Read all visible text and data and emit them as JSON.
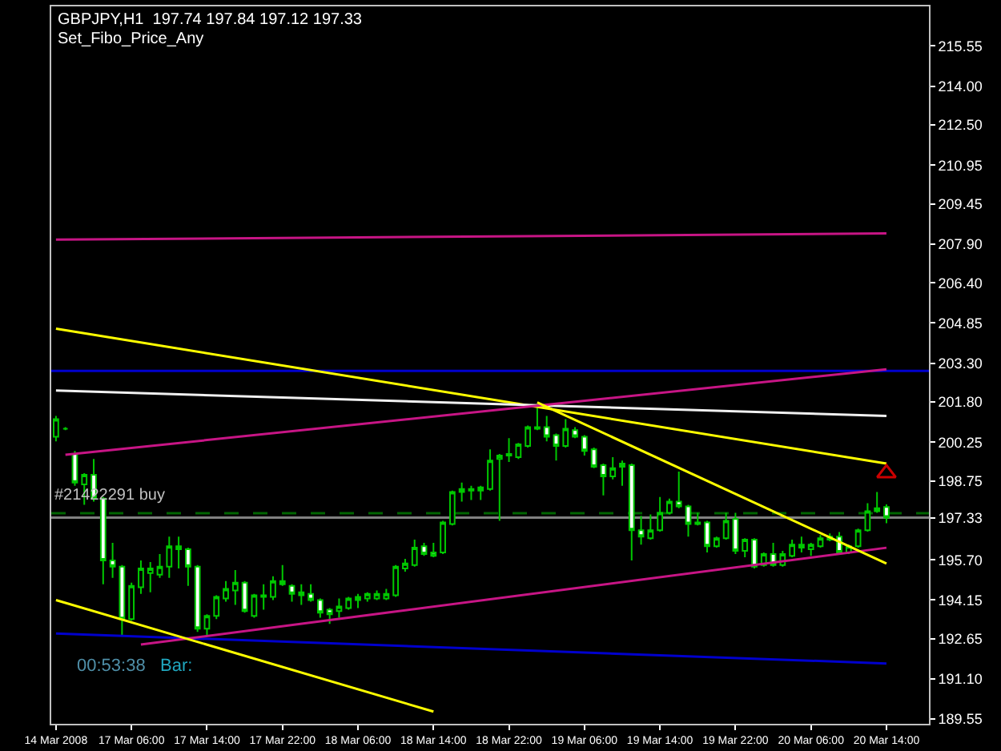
{
  "chart_data": {
    "type": "candlestick",
    "title": "GBPJPY,H1  197.74 197.84 197.12 197.33",
    "subtitle": "Set_Fibo_Price_Any",
    "annotations": [
      "#21422291 buy",
      "00:53:38",
      "Bar:"
    ],
    "categories": [
      "14 Mar 2008",
      null,
      null,
      null,
      null,
      null,
      null,
      null,
      "17 Mar 06:00",
      null,
      null,
      null,
      null,
      null,
      null,
      null,
      "17 Mar 14:00",
      null,
      null,
      null,
      null,
      null,
      null,
      null,
      "17 Mar 22:00",
      null,
      null,
      null,
      null,
      null,
      null,
      null,
      "18 Mar 06:00",
      null,
      null,
      null,
      null,
      null,
      null,
      null,
      "18 Mar 14:00",
      null,
      null,
      null,
      null,
      null,
      null,
      null,
      "18 Mar 22:00",
      null,
      null,
      null,
      null,
      null,
      null,
      null,
      "19 Mar 06:00",
      null,
      null,
      null,
      null,
      null,
      null,
      null,
      "19 Mar 14:00",
      null,
      null,
      null,
      null,
      null,
      null,
      null,
      "19 Mar 22:00",
      null,
      null,
      null,
      null,
      null,
      null,
      null,
      "20 Mar 06:00",
      null,
      null,
      null,
      null,
      null,
      null,
      null,
      "20 Mar 14:00"
    ],
    "color": "#00c800",
    "ohlc": [
      [
        200.46,
        201.26,
        200.28,
        201.14
      ],
      [
        200.77,
        200.83,
        200.71,
        200.77
      ],
      [
        199.79,
        199.91,
        198.56,
        198.69
      ],
      [
        198.62,
        199.05,
        197.83,
        198.99
      ],
      [
        198.99,
        199.6,
        197.95,
        198.07
      ],
      [
        198.07,
        198.13,
        194.76,
        195.68
      ],
      [
        195.68,
        196.36,
        195.01,
        195.44
      ],
      [
        195.44,
        195.5,
        192.74,
        193.41
      ],
      [
        193.41,
        194.82,
        193.35,
        194.7
      ],
      [
        194.64,
        195.68,
        194.39,
        195.37
      ],
      [
        195.19,
        195.62,
        194.45,
        195.37
      ],
      [
        195.13,
        195.93,
        195.01,
        195.44
      ],
      [
        195.44,
        196.6,
        195.01,
        196.23
      ],
      [
        196.23,
        196.6,
        195.37,
        196.11
      ],
      [
        196.11,
        196.17,
        194.7,
        195.44
      ],
      [
        195.44,
        195.5,
        192.92,
        193.04
      ],
      [
        193.04,
        193.6,
        192.74,
        193.54
      ],
      [
        193.54,
        194.33,
        193.41,
        194.27
      ],
      [
        194.21,
        194.88,
        194.09,
        194.58
      ],
      [
        194.52,
        195.31,
        193.96,
        194.82
      ],
      [
        194.82,
        194.88,
        193.66,
        193.72
      ],
      [
        193.54,
        194.39,
        193.47,
        194.33
      ],
      [
        194.33,
        194.76,
        193.78,
        194.27
      ],
      [
        194.27,
        195.07,
        194.15,
        194.88
      ],
      [
        194.88,
        195.5,
        194.7,
        194.76
      ],
      [
        194.7,
        194.76,
        194.09,
        194.39
      ],
      [
        194.45,
        194.76,
        193.96,
        194.33
      ],
      [
        194.39,
        194.76,
        194.09,
        194.15
      ],
      [
        194.15,
        194.21,
        193.47,
        193.66
      ],
      [
        193.78,
        193.84,
        193.23,
        193.6
      ],
      [
        193.72,
        194.21,
        193.47,
        193.9
      ],
      [
        193.84,
        194.27,
        193.78,
        194.21
      ],
      [
        194.15,
        194.39,
        193.84,
        194.27
      ],
      [
        194.21,
        194.45,
        194.09,
        194.39
      ],
      [
        194.21,
        194.52,
        194.15,
        194.39
      ],
      [
        194.21,
        194.58,
        194.15,
        194.39
      ],
      [
        194.33,
        195.5,
        194.27,
        195.44
      ],
      [
        195.37,
        195.74,
        195.25,
        195.56
      ],
      [
        195.5,
        196.48,
        195.44,
        196.17
      ],
      [
        196.23,
        196.36,
        195.86,
        195.93
      ],
      [
        195.99,
        196.36,
        195.8,
        195.86
      ],
      [
        195.99,
        197.21,
        195.93,
        197.15
      ],
      [
        197.09,
        198.38,
        197.03,
        198.32
      ],
      [
        198.32,
        198.69,
        197.95,
        198.44
      ],
      [
        198.44,
        198.56,
        198.01,
        198.38
      ],
      [
        198.38,
        198.56,
        198.01,
        198.5
      ],
      [
        198.44,
        199.97,
        198.38,
        199.54
      ],
      [
        199.6,
        199.79,
        197.21,
        199.73
      ],
      [
        199.73,
        200.4,
        199.48,
        199.79
      ],
      [
        199.67,
        200.22,
        199.6,
        200.16
      ],
      [
        200.1,
        200.89,
        200.04,
        200.83
      ],
      [
        200.83,
        201.57,
        200.71,
        200.77
      ],
      [
        200.83,
        201.26,
        200.28,
        200.46
      ],
      [
        200.52,
        200.58,
        199.54,
        200.1
      ],
      [
        200.1,
        201.14,
        200.04,
        200.77
      ],
      [
        200.71,
        200.83,
        200.4,
        200.46
      ],
      [
        200.46,
        200.52,
        199.73,
        199.91
      ],
      [
        199.97,
        200.04,
        199.24,
        199.3
      ],
      [
        199.36,
        199.42,
        198.19,
        198.93
      ],
      [
        198.93,
        199.67,
        198.81,
        199.24
      ],
      [
        199.42,
        199.54,
        198.56,
        199.3
      ],
      [
        199.36,
        199.42,
        195.68,
        196.85
      ],
      [
        196.85,
        197.4,
        196.29,
        196.6
      ],
      [
        196.54,
        197.46,
        196.48,
        196.85
      ],
      [
        196.85,
        198.13,
        196.79,
        197.52
      ],
      [
        197.52,
        198.07,
        197.46,
        197.95
      ],
      [
        197.95,
        199.11,
        197.7,
        197.77
      ],
      [
        197.77,
        197.83,
        196.6,
        197.09
      ],
      [
        197.15,
        197.52,
        197.03,
        197.09
      ],
      [
        197.15,
        197.21,
        195.99,
        196.23
      ],
      [
        196.23,
        196.6,
        196.17,
        196.54
      ],
      [
        196.54,
        197.52,
        196.48,
        197.21
      ],
      [
        197.28,
        197.52,
        195.93,
        196.05
      ],
      [
        196.05,
        196.54,
        195.8,
        196.48
      ],
      [
        196.48,
        196.54,
        195.37,
        195.44
      ],
      [
        195.5,
        195.99,
        195.44,
        195.93
      ],
      [
        195.93,
        196.36,
        195.44,
        195.5
      ],
      [
        195.5,
        196.05,
        195.44,
        195.93
      ],
      [
        195.86,
        196.48,
        195.8,
        196.29
      ],
      [
        196.29,
        196.6,
        195.99,
        196.17
      ],
      [
        196.11,
        196.36,
        195.86,
        196.29
      ],
      [
        196.23,
        196.66,
        196.17,
        196.54
      ],
      [
        196.48,
        196.72,
        196.42,
        196.6
      ],
      [
        196.6,
        196.78,
        195.93,
        195.99
      ],
      [
        195.99,
        196.29,
        195.93,
        196.23
      ],
      [
        196.23,
        196.91,
        196.17,
        196.85
      ],
      [
        196.85,
        197.89,
        196.79,
        197.58
      ],
      [
        197.58,
        198.32,
        197.52,
        197.7
      ],
      [
        197.74,
        197.84,
        197.12,
        197.33
      ]
    ],
    "series": [
      {
        "type": "line",
        "color": "#c71585",
        "values": [
          208.07,
          null,
          null,
          null,
          null,
          null,
          null,
          null,
          null,
          null,
          null,
          null,
          null,
          null,
          null,
          null,
          null,
          null,
          null,
          null,
          null,
          null,
          null,
          null,
          null,
          null,
          null,
          null,
          null,
          null,
          null,
          null,
          null,
          null,
          null,
          null,
          null,
          null,
          null,
          null,
          null,
          null,
          null,
          null,
          null,
          null,
          null,
          null,
          null,
          null,
          null,
          null,
          null,
          null,
          null,
          null,
          null,
          null,
          null,
          null,
          null,
          null,
          null,
          null,
          null,
          null,
          null,
          null,
          null,
          null,
          null,
          null,
          null,
          null,
          null,
          null,
          null,
          null,
          null,
          null,
          null,
          null,
          null,
          null,
          null,
          null,
          null,
          null,
          208.31
        ]
      },
      {
        "type": "line",
        "color": "#ffff00",
        "values": [
          204.63,
          null,
          null,
          null,
          null,
          null,
          null,
          null,
          null,
          null,
          null,
          null,
          null,
          null,
          null,
          null,
          null,
          null,
          null,
          null,
          null,
          null,
          null,
          null,
          null,
          null,
          null,
          null,
          null,
          null,
          null,
          null,
          null,
          null,
          null,
          null,
          null,
          null,
          null,
          null,
          null,
          null,
          null,
          null,
          null,
          null,
          null,
          null,
          null,
          null,
          null,
          null,
          null,
          null,
          null,
          null,
          null,
          null,
          null,
          null,
          null,
          null,
          null,
          null,
          null,
          null,
          null,
          null,
          null,
          null,
          null,
          null,
          null,
          null,
          null,
          null,
          null,
          null,
          null,
          null,
          null,
          null,
          null,
          null,
          null,
          null,
          null,
          null,
          199.42
        ]
      },
      {
        "type": "line",
        "color": "#f0f0f0",
        "values": [
          202.24,
          null,
          null,
          null,
          null,
          null,
          null,
          null,
          null,
          null,
          null,
          null,
          null,
          null,
          null,
          null,
          null,
          null,
          null,
          null,
          null,
          null,
          null,
          null,
          null,
          null,
          null,
          null,
          null,
          null,
          null,
          null,
          null,
          null,
          null,
          null,
          null,
          null,
          null,
          null,
          null,
          null,
          null,
          null,
          null,
          null,
          null,
          null,
          null,
          null,
          null,
          null,
          null,
          null,
          null,
          null,
          null,
          null,
          null,
          null,
          null,
          null,
          null,
          null,
          null,
          null,
          null,
          null,
          null,
          null,
          null,
          null,
          null,
          null,
          null,
          null,
          null,
          null,
          null,
          null,
          null,
          null,
          null,
          null,
          null,
          null,
          null,
          null,
          201.26
        ]
      },
      {
        "type": "line",
        "color": "#0000cd",
        "values": [
          192.86,
          null,
          null,
          null,
          null,
          null,
          null,
          null,
          null,
          null,
          null,
          null,
          null,
          null,
          null,
          null,
          null,
          null,
          null,
          null,
          null,
          null,
          null,
          null,
          null,
          null,
          null,
          null,
          null,
          null,
          null,
          null,
          null,
          null,
          null,
          null,
          null,
          null,
          null,
          null,
          null,
          null,
          null,
          null,
          null,
          null,
          null,
          null,
          null,
          null,
          null,
          null,
          null,
          null,
          null,
          null,
          null,
          null,
          null,
          null,
          null,
          null,
          null,
          null,
          null,
          null,
          null,
          null,
          null,
          null,
          null,
          null,
          null,
          null,
          null,
          null,
          null,
          null,
          null,
          null,
          null,
          null,
          null,
          null,
          null,
          null,
          null,
          null,
          191.7
        ]
      },
      {
        "type": "line",
        "color": "#c71585",
        "values": [
          null,
          199.76,
          null,
          null,
          null,
          null,
          null,
          null,
          null,
          null,
          null,
          null,
          null,
          null,
          null,
          null,
          null,
          null,
          null,
          null,
          null,
          null,
          null,
          null,
          null,
          null,
          null,
          null,
          null,
          null,
          null,
          null,
          null,
          null,
          null,
          null,
          null,
          null,
          null,
          null,
          null,
          null,
          null,
          null,
          null,
          null,
          null,
          null,
          null,
          null,
          null,
          null,
          null,
          null,
          null,
          null,
          null,
          null,
          null,
          null,
          null,
          null,
          null,
          null,
          null,
          null,
          null,
          null,
          null,
          null,
          null,
          null,
          null,
          null,
          null,
          null,
          null,
          null,
          null,
          null,
          null,
          null,
          null,
          null,
          null,
          null,
          null,
          null,
          203.06
        ]
      },
      {
        "type": "line",
        "color": "#c71585",
        "values": [
          null,
          null,
          null,
          null,
          null,
          null,
          null,
          null,
          null,
          192.43,
          null,
          null,
          null,
          null,
          null,
          null,
          null,
          null,
          null,
          null,
          null,
          null,
          null,
          null,
          null,
          null,
          null,
          null,
          null,
          null,
          null,
          null,
          null,
          null,
          null,
          null,
          null,
          null,
          null,
          null,
          null,
          null,
          null,
          null,
          null,
          null,
          null,
          null,
          null,
          null,
          null,
          null,
          null,
          null,
          null,
          null,
          null,
          null,
          null,
          null,
          null,
          null,
          null,
          null,
          null,
          null,
          null,
          null,
          null,
          null,
          null,
          null,
          null,
          null,
          null,
          null,
          null,
          null,
          null,
          null,
          null,
          null,
          null,
          null,
          null,
          null,
          null,
          null,
          196.17
        ]
      },
      {
        "type": "line",
        "color": "#ffff00",
        "values": [
          194.15,
          null,
          null,
          null,
          null,
          null,
          null,
          null,
          null,
          null,
          null,
          null,
          null,
          null,
          null,
          null,
          null,
          null,
          null,
          null,
          null,
          null,
          null,
          null,
          null,
          null,
          null,
          null,
          null,
          null,
          null,
          null,
          null,
          null,
          null,
          null,
          null,
          null,
          null,
          null,
          189.84,
          null,
          null,
          null,
          null,
          null,
          null,
          null,
          null,
          null,
          null,
          null,
          null,
          null,
          null,
          null,
          null,
          null,
          null,
          null,
          null,
          null,
          null,
          null,
          null,
          null,
          null,
          null,
          null,
          null,
          null,
          null,
          null,
          null,
          null,
          null,
          null,
          null,
          null,
          null,
          null,
          null,
          null,
          null,
          null,
          null,
          null,
          null,
          null
        ]
      },
      {
        "type": "line",
        "color": "#ffff00",
        "values": [
          null,
          null,
          null,
          null,
          null,
          null,
          null,
          null,
          null,
          null,
          null,
          null,
          null,
          null,
          null,
          null,
          null,
          null,
          null,
          null,
          null,
          null,
          null,
          null,
          null,
          null,
          null,
          null,
          null,
          null,
          null,
          null,
          null,
          null,
          null,
          null,
          null,
          null,
          null,
          null,
          null,
          null,
          null,
          null,
          null,
          null,
          null,
          null,
          null,
          null,
          null,
          201.78,
          null,
          null,
          null,
          null,
          null,
          null,
          null,
          null,
          null,
          null,
          null,
          null,
          null,
          null,
          null,
          null,
          null,
          null,
          null,
          null,
          null,
          null,
          null,
          null,
          null,
          null,
          null,
          null,
          null,
          null,
          null,
          null,
          null,
          null,
          null,
          null,
          195.56
        ]
      },
      {
        "type": "scatter",
        "marker": "triangle",
        "color": "#cc0000",
        "values": [
          null,
          null,
          null,
          null,
          null,
          null,
          null,
          null,
          null,
          null,
          null,
          null,
          null,
          null,
          null,
          null,
          null,
          null,
          null,
          null,
          null,
          null,
          null,
          null,
          null,
          null,
          null,
          null,
          null,
          null,
          null,
          null,
          null,
          null,
          null,
          null,
          null,
          null,
          null,
          null,
          null,
          null,
          null,
          null,
          null,
          null,
          null,
          null,
          null,
          null,
          null,
          null,
          null,
          null,
          null,
          null,
          null,
          null,
          null,
          null,
          null,
          null,
          null,
          null,
          null,
          null,
          null,
          null,
          null,
          null,
          null,
          null,
          null,
          null,
          null,
          null,
          null,
          null,
          null,
          null,
          null,
          null,
          null,
          null,
          null,
          null,
          null,
          null,
          199.05
        ]
      }
    ],
    "ref_lines": [
      {
        "axis": "y",
        "value": 203.0,
        "color": "#0000cd",
        "line_style": "solid"
      },
      {
        "axis": "y",
        "value": 197.5,
        "color": "#006400",
        "line_style": "dashed"
      },
      {
        "axis": "y",
        "value": 197.33,
        "color": "#808080",
        "line_style": "solid"
      }
    ],
    "ylim": [
      189.37,
      217.08
    ],
    "yticks": [
      215.55,
      {
        "value": 214.0,
        "label": "214.00"
      },
      {
        "value": 212.5,
        "label": "212.50"
      },
      210.95,
      209.45,
      {
        "value": 207.9,
        "label": "207.90"
      },
      {
        "value": 206.4,
        "label": "206.40"
      },
      204.85,
      {
        "value": 203.3,
        "label": "203.30"
      },
      {
        "value": 201.8,
        "label": "201.80"
      },
      200.25,
      198.75,
      197.33,
      {
        "value": 195.7,
        "label": "195.70"
      },
      194.15,
      192.65,
      {
        "value": 191.1,
        "label": "191.10"
      },
      189.55
    ],
    "grid": false
  }
}
